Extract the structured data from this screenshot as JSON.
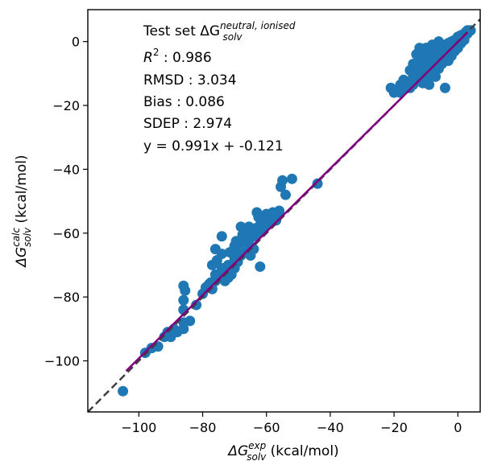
{
  "chart_data": {
    "type": "scatter",
    "xlim": [
      -116,
      7
    ],
    "ylim": [
      -116,
      10
    ],
    "x_ticks": [
      -100,
      -80,
      -60,
      -40,
      -20,
      0
    ],
    "y_ticks": [
      -100,
      -80,
      -60,
      -40,
      -20,
      0
    ],
    "x_tick_labels": [
      "−100",
      "−80",
      "−60",
      "−40",
      "−20",
      "0"
    ],
    "y_tick_labels": [
      "−100",
      "−80",
      "−60",
      "−40",
      "−20",
      "0"
    ],
    "xlabel": {
      "prefix": "ΔG",
      "sup": "exp",
      "sub": "solv",
      "suffix": " (kcal/mol)"
    },
    "ylabel": {
      "prefix": "ΔG",
      "sup": "calc",
      "sub": "solv",
      "suffix": " (kcal/mol)"
    },
    "annotation": {
      "title_prefix": "Test set ΔG",
      "title_sup": "neutral, ionised",
      "title_sub": "solv",
      "r2_label": "R",
      "r2_sup": "2",
      "r2_value": " : 0.986",
      "rmsd": "RMSD : 3.034",
      "bias": "Bias : 0.086",
      "sdep": "SDEP : 2.974",
      "equation": "y = 0.991x + -0.121"
    },
    "marker_color": "#1f77b4",
    "fit_line_color": "#800080",
    "identity_line_color": "#404040",
    "identity_line": {
      "slope": 1,
      "intercept": 0,
      "style": "dashed"
    },
    "fit_line": {
      "slope": 0.991,
      "intercept": -0.121,
      "x_range": [
        -104,
        3
      ]
    },
    "points": [
      [
        -105,
        -109.5
      ],
      [
        -98,
        -97.5
      ],
      [
        -96,
        -96
      ],
      [
        -94,
        -95.5
      ],
      [
        -92,
        -92.5
      ],
      [
        -90,
        -92.5
      ],
      [
        -91,
        -91
      ],
      [
        -89,
        -90
      ],
      [
        -88,
        -91
      ],
      [
        -86,
        -90
      ],
      [
        -86,
        -88
      ],
      [
        -84,
        -87.5
      ],
      [
        -86,
        -84
      ],
      [
        -86,
        -81
      ],
      [
        -85.5,
        -78
      ],
      [
        -86,
        -76.5
      ],
      [
        -82,
        -82.5
      ],
      [
        -80,
        -79
      ],
      [
        -79,
        -77
      ],
      [
        -78,
        -76
      ],
      [
        -77.5,
        -75.5
      ],
      [
        -77,
        -77.5
      ],
      [
        -76,
        -75
      ],
      [
        -76,
        -73
      ],
      [
        -77,
        -70
      ],
      [
        -75.5,
        -68.5
      ],
      [
        -76,
        -65
      ],
      [
        -74,
        -61
      ],
      [
        -74,
        -71
      ],
      [
        -73,
        -72
      ],
      [
        -72,
        -74
      ],
      [
        -72,
        -70
      ],
      [
        -71,
        -73
      ],
      [
        -70,
        -71
      ],
      [
        -70,
        -68
      ],
      [
        -69,
        -69
      ],
      [
        -69,
        -66
      ],
      [
        -68,
        -67
      ],
      [
        -68,
        -63
      ],
      [
        -68,
        -58
      ],
      [
        -67,
        -62
      ],
      [
        -67,
        -66
      ],
      [
        -66,
        -63
      ],
      [
        -66,
        -60
      ],
      [
        -65,
        -67
      ],
      [
        -65,
        -64
      ],
      [
        -64,
        -61
      ],
      [
        -64,
        -65
      ],
      [
        -63,
        -60
      ],
      [
        -63,
        -53.5
      ],
      [
        -62,
        -70.5
      ],
      [
        -62,
        -57.5
      ],
      [
        -61,
        -59
      ],
      [
        -61,
        -55.5
      ],
      [
        -60,
        -57
      ],
      [
        -60,
        -54
      ],
      [
        -59,
        -56
      ],
      [
        -58,
        -53.5
      ],
      [
        -57,
        -56
      ],
      [
        -56,
        -54
      ],
      [
        -56,
        -53
      ],
      [
        -55.5,
        -45.5
      ],
      [
        -55,
        -43.5
      ],
      [
        -54,
        -48
      ],
      [
        -52,
        -43
      ],
      [
        -70,
        -64
      ],
      [
        -71,
        -72
      ],
      [
        -73,
        -75
      ],
      [
        -74,
        -66.5
      ],
      [
        -75,
        -73
      ],
      [
        -71.5,
        -66
      ],
      [
        -69.5,
        -62.5
      ],
      [
        -67.5,
        -60.5
      ],
      [
        -65.5,
        -58
      ],
      [
        -63.5,
        -58.5
      ],
      [
        -62.5,
        -55
      ],
      [
        -44,
        -44.5
      ],
      [
        -21,
        -14.5
      ],
      [
        -20,
        -16
      ],
      [
        -19,
        -15
      ],
      [
        -18,
        -13.5
      ],
      [
        -18,
        -16
      ],
      [
        -17,
        -15
      ],
      [
        -16,
        -14.5
      ],
      [
        -16,
        -13
      ],
      [
        -15,
        -12.5
      ],
      [
        -15,
        -14.5
      ],
      [
        -14,
        -11
      ],
      [
        -14,
        -13.5
      ],
      [
        -13,
        -12
      ],
      [
        -13,
        -9.5
      ],
      [
        -12,
        -10.5
      ],
      [
        -12,
        -6.5
      ],
      [
        -11,
        -13
      ],
      [
        -11,
        -9
      ],
      [
        -11,
        -5.5
      ],
      [
        -10,
        -11.5
      ],
      [
        -10,
        -8
      ],
      [
        -10,
        -4
      ],
      [
        -9,
        -9
      ],
      [
        -9,
        -6
      ],
      [
        -9,
        -13.5
      ],
      [
        -8,
        -7
      ],
      [
        -8,
        -4.5
      ],
      [
        -8,
        -10.5
      ],
      [
        -7,
        -6
      ],
      [
        -7,
        -3
      ],
      [
        -7,
        -11
      ],
      [
        -6,
        -5.5
      ],
      [
        -6,
        -2.5
      ],
      [
        -6,
        -8.5
      ],
      [
        -5,
        -4
      ],
      [
        -5,
        -1.5
      ],
      [
        -5,
        -7
      ],
      [
        -4,
        -3.5
      ],
      [
        -4,
        -1
      ],
      [
        -4,
        -14.5
      ],
      [
        -3,
        -2.5
      ],
      [
        -3,
        -0.5
      ],
      [
        -3,
        -6
      ],
      [
        -2,
        -2
      ],
      [
        -2,
        0
      ],
      [
        -2,
        -4.5
      ],
      [
        -1,
        -1
      ],
      [
        -1,
        0.5
      ],
      [
        -1,
        -3
      ],
      [
        0,
        0
      ],
      [
        0,
        1.5
      ],
      [
        0,
        -2
      ],
      [
        1,
        1
      ],
      [
        1,
        2
      ],
      [
        1,
        -0.5
      ],
      [
        2,
        2
      ],
      [
        2,
        0.5
      ],
      [
        2.5,
        3
      ],
      [
        3,
        2.5
      ],
      [
        3,
        3.5
      ],
      [
        4,
        3.5
      ],
      [
        -15,
        -9
      ],
      [
        -13,
        -4
      ],
      [
        -12,
        -2
      ],
      [
        -17,
        -12
      ],
      [
        -10,
        -2
      ],
      [
        -8,
        -1
      ],
      [
        -6,
        0
      ],
      [
        -14,
        -7
      ]
    ]
  }
}
